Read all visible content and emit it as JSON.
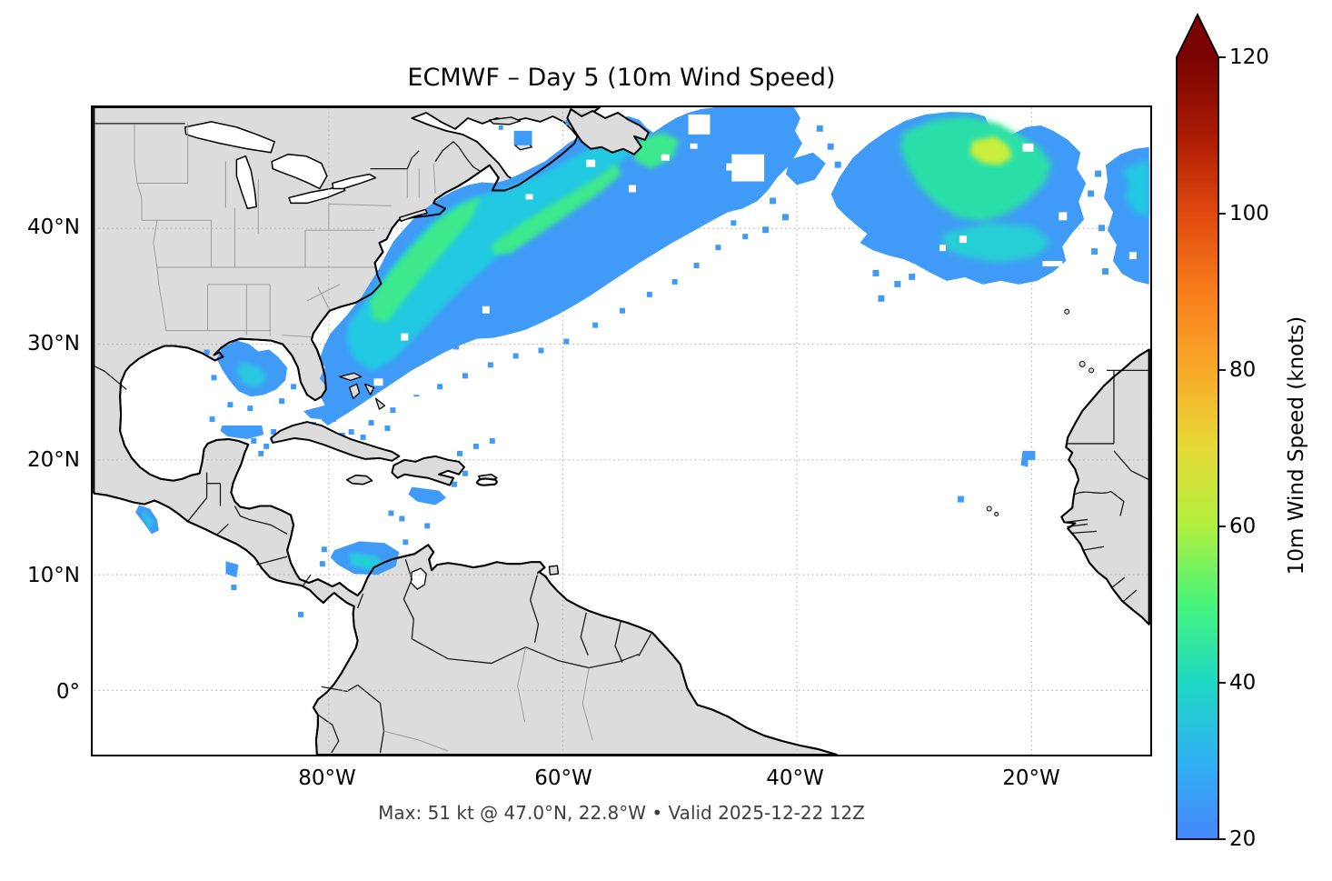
{
  "figure": {
    "title": "ECMWF – Day 5 (10m Wind Speed)",
    "caption": "Max: 51 kt @ 47.0°N, 22.8°W • Valid 2025-12-22 12Z"
  },
  "axes": {
    "x_tick_labels": [
      "80°W",
      "60°W",
      "40°W",
      "20°W"
    ],
    "y_tick_labels": [
      "40°N",
      "30°N",
      "20°N",
      "10°N",
      "0°"
    ],
    "extent": {
      "lon_min": -100,
      "lon_max": -10,
      "lat_min": -5.8,
      "lat_max": 50.4
    },
    "grid": "dotted, 10-degree latitude / 20-degree longitude"
  },
  "colorbar": {
    "label": "10m Wind Speed (knots)",
    "tick_labels": [
      "20",
      "40",
      "60",
      "80",
      "100",
      "120"
    ],
    "ticks": [
      20,
      40,
      60,
      80,
      100,
      120
    ],
    "min": 20,
    "max": 120,
    "extend": "max",
    "arrow_color": "#7a0403",
    "stops": [
      {
        "value": 20,
        "color": "#4687fb"
      },
      {
        "value": 30,
        "color": "#30b1f2"
      },
      {
        "value": 40,
        "color": "#1fd8c4"
      },
      {
        "value": 50,
        "color": "#46f47d"
      },
      {
        "value": 60,
        "color": "#b0f03f"
      },
      {
        "value": 70,
        "color": "#e6da38"
      },
      {
        "value": 80,
        "color": "#f9a929"
      },
      {
        "value": 90,
        "color": "#f87d1c"
      },
      {
        "value": 100,
        "color": "#e0490f"
      },
      {
        "value": 110,
        "color": "#aa1a04"
      },
      {
        "value": 120,
        "color": "#7a0403"
      }
    ]
  },
  "chart_data": {
    "type": "map_wind_field",
    "model": "ECMWF",
    "forecast_day": 5,
    "variable": "10m Wind Speed",
    "units": "knots",
    "valid_time": "2025-12-22 12Z",
    "max_value": {
      "value_kt": 51,
      "lat": 47.0,
      "lon": -22.8
    },
    "shading_threshold_kt": 20,
    "regions": [
      {
        "area": "NW Atlantic swath from US East Coast to south of Newfoundland",
        "approx_range_kt": "20-45"
      },
      {
        "area": "NE Atlantic storm west of Iberia/Ireland, contains overall max 51 kt at 47.0N 22.8W",
        "approx_range_kt": "20-51"
      },
      {
        "area": "Eastern Gulf of Mexico patch",
        "approx_range_kt": "20-32"
      },
      {
        "area": "Bahamas / Florida Strait tail of main swath",
        "approx_range_kt": "20-28"
      },
      {
        "area": "SW Caribbean off Colombia",
        "approx_range_kt": "20-36"
      },
      {
        "area": "Gulf of Tehuantepec gap wind (Pacific)",
        "approx_range_kt": "20-33"
      },
      {
        "area": "Scattered specks: south of Hispaniola, Yucatan Channel, Costa Rica Pacific, near Cape Verde and NW African coast",
        "approx_range_kt": "20-25"
      }
    ],
    "palette_used_on_map": [
      "#3f9bf7",
      "#2cc7e2",
      "#1fd6cb",
      "#3ce98c",
      "#2ae0a8",
      "#c8ee3a"
    ]
  },
  "map": {
    "land_color": "#dcdcdc",
    "ocean_color": "#ffffff",
    "coast_color": "#000000",
    "country_border_color": "#1a1a1a",
    "state_line_color": "#9b9b9b",
    "grid_color": "#b5b5b5"
  }
}
